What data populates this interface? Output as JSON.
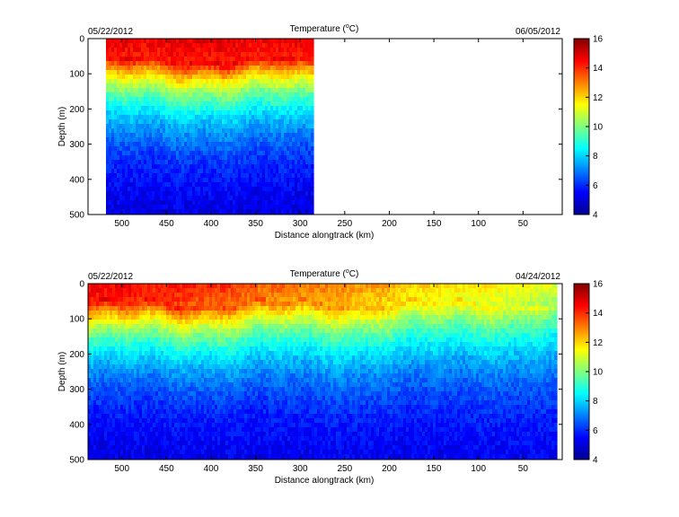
{
  "chart_data": [
    {
      "type": "heatmap",
      "title_text": "Temperature (",
      "title_degree": "o",
      "title_unit": "C)",
      "date_left": "05/22/2012",
      "date_right": "06/05/2012",
      "xlabel": "Distance alongtrack (km)",
      "ylabel": "Depth (m)",
      "xlim": [
        538,
        6
      ],
      "ylim": [
        0,
        500
      ],
      "x_ticks": [
        500,
        450,
        400,
        350,
        300,
        250,
        200,
        150,
        100,
        50
      ],
      "y_ticks": [
        0,
        100,
        200,
        300,
        400,
        500
      ],
      "data_x_range": [
        518,
        286
      ],
      "colorbar": {
        "range": [
          4,
          16
        ],
        "ticks": [
          4,
          6,
          8,
          10,
          12,
          14,
          16
        ]
      }
    },
    {
      "type": "heatmap",
      "title_text": "Temperature (",
      "title_degree": "o",
      "title_unit": "C)",
      "date_left": "05/22/2012",
      "date_right": "04/24/2012",
      "xlabel": "Distance alongtrack (km)",
      "ylabel": "Depth (m)",
      "xlim": [
        538,
        6
      ],
      "ylim": [
        0,
        500
      ],
      "x_ticks": [
        500,
        450,
        400,
        350,
        300,
        250,
        200,
        150,
        100,
        50
      ],
      "y_ticks": [
        0,
        100,
        200,
        300,
        400,
        500
      ],
      "data_x_range": [
        538,
        12
      ],
      "colorbar": {
        "range": [
          4,
          16
        ],
        "ticks": [
          4,
          6,
          8,
          10,
          12,
          14,
          16
        ]
      }
    }
  ],
  "colors": {
    "colormap": "jet",
    "axis": "#000000",
    "background": "#ffffff"
  }
}
